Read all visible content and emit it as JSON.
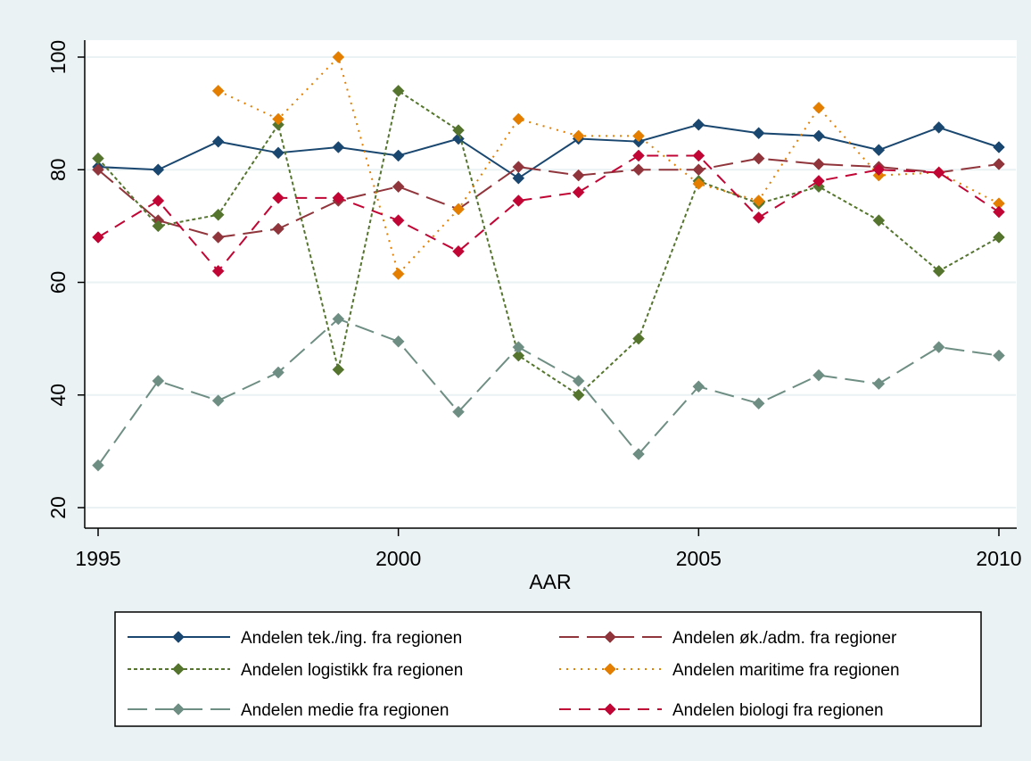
{
  "chart_data": {
    "type": "line",
    "xlabel": "AAR",
    "ylabel": "",
    "xlim": [
      1995,
      2010
    ],
    "ylim": [
      20,
      100
    ],
    "xticks": [
      "1995",
      "2000",
      "2005",
      "2010"
    ],
    "yticks": [
      "20",
      "40",
      "60",
      "80",
      "100"
    ],
    "grid": true,
    "legend_position": "bottom",
    "x": [
      1995,
      1996,
      1997,
      1998,
      1999,
      2000,
      2001,
      2002,
      2003,
      2004,
      2005,
      2006,
      2007,
      2008,
      2009,
      2010
    ],
    "series": [
      {
        "name": "Andelen tek./ing. fra regionen",
        "color": "#1a476f",
        "dash": "solid",
        "values": [
          80.5,
          80.0,
          85.0,
          83.0,
          84.0,
          82.5,
          85.5,
          78.5,
          85.5,
          85.0,
          88.0,
          86.5,
          86.0,
          83.5,
          87.5,
          84.0
        ]
      },
      {
        "name": "Andelen øk./adm. fra regioner",
        "color": "#90353b",
        "dash": "longdash",
        "values": [
          80.0,
          71.0,
          68.0,
          69.5,
          74.5,
          77.0,
          73.0,
          80.5,
          79.0,
          80.0,
          80.0,
          82.0,
          81.0,
          80.5,
          79.5,
          81.0
        ]
      },
      {
        "name": "Andelen logistikk fra regionen",
        "color": "#55752f",
        "dash": "shortdash",
        "values": [
          82.0,
          70.0,
          72.0,
          88.0,
          44.5,
          94.0,
          87.0,
          47.0,
          40.0,
          50.0,
          78.0,
          74.0,
          77.0,
          71.0,
          62.0,
          68.0
        ]
      },
      {
        "name": "Andelen maritime fra regionen",
        "color": "#e37e00",
        "dash": "dot",
        "values": [
          null,
          null,
          94.0,
          89.0,
          100.0,
          61.5,
          73.0,
          89.0,
          86.0,
          86.0,
          77.5,
          74.5,
          91.0,
          79.0,
          79.5,
          74.0
        ]
      },
      {
        "name": "Andelen medie fra regionen",
        "color": "#6e8e84",
        "dash": "longdash",
        "values": [
          27.5,
          42.5,
          39.0,
          44.0,
          53.5,
          49.5,
          37.0,
          48.5,
          42.5,
          29.5,
          41.5,
          38.5,
          43.5,
          42.0,
          48.5,
          47.0
        ]
      },
      {
        "name": "Andelen biologi fra regionen",
        "color": "#c10534",
        "dash": "dash",
        "values": [
          68.0,
          74.5,
          62.0,
          75.0,
          75.0,
          71.0,
          65.5,
          74.5,
          76.0,
          82.5,
          82.5,
          71.5,
          78.0,
          80.0,
          79.5,
          72.5
        ]
      }
    ]
  }
}
